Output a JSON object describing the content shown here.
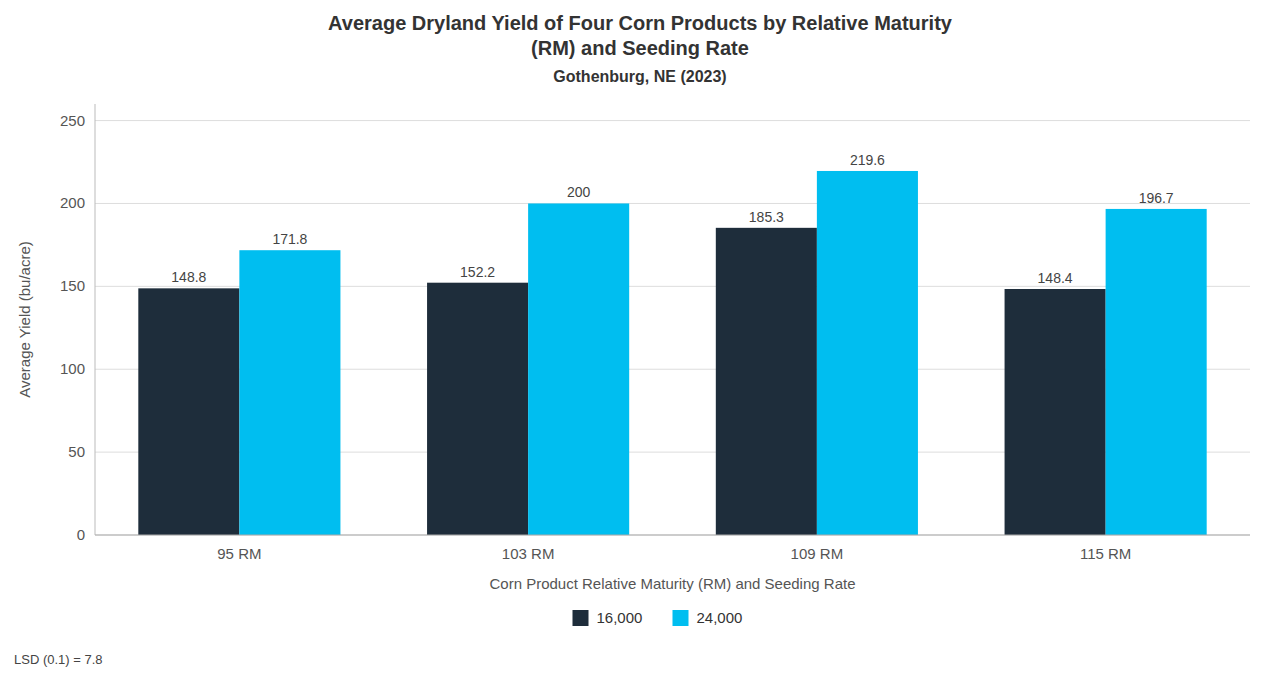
{
  "chart_data": {
    "type": "bar",
    "title": "Average Dryland Yield of Four Corn Products by Relative Maturity\n(RM) and Seeding Rate",
    "subtitle": "Gothenburg, NE (2023)",
    "xlabel": "Corn Product Relative Maturity (RM) and Seeding Rate",
    "ylabel": "Average Yield (bu/acre)",
    "categories": [
      "95 RM",
      "103 RM",
      "109 RM",
      "115 RM"
    ],
    "series": [
      {
        "name": "16,000",
        "color": "#1e2d3b",
        "values": [
          148.8,
          152.2,
          185.3,
          148.4
        ]
      },
      {
        "name": "24,000",
        "color": "#00bef0",
        "values": [
          171.8,
          200.0,
          219.6,
          196.7
        ]
      }
    ],
    "ylim": [
      0,
      260
    ],
    "yticks": [
      0,
      50,
      100,
      150,
      200,
      250
    ],
    "grid": true,
    "legend": "bottom",
    "data_labels": true,
    "annotations": [
      "LSD (0.1) = 7.8"
    ]
  }
}
